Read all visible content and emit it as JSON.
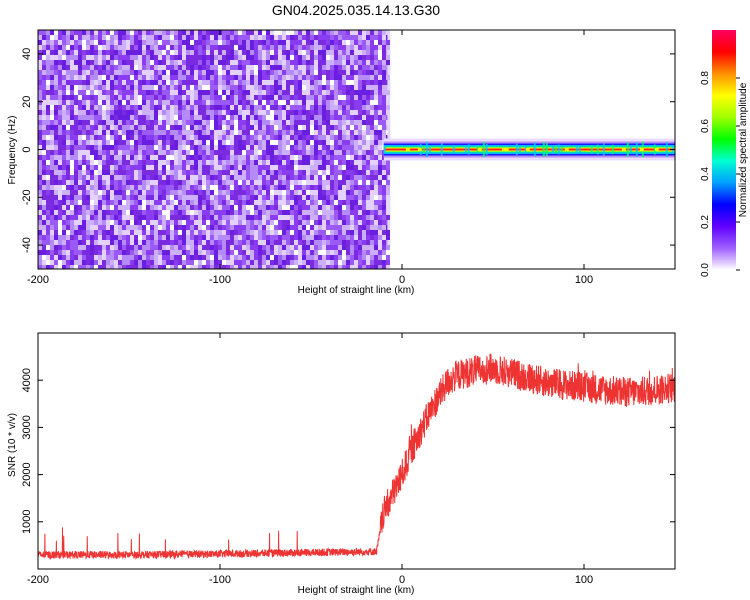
{
  "figure": {
    "title": "GN04.2025.035.14.13.G30"
  },
  "colors": {
    "snr_line": "#ee3333",
    "spectrogram_noise": "#7a2be0",
    "spectrogram_peak": "#ff2020",
    "colorbar": [
      "#ffffff",
      "#a060ff",
      "#6000ff",
      "#0000ff",
      "#00a0ff",
      "#00ffd0",
      "#00ff00",
      "#a0ff00",
      "#ffff00",
      "#ff9000",
      "#ff0000",
      "#ff0060"
    ]
  },
  "chart_data": [
    {
      "type": "heatmap",
      "title": "",
      "xlabel": "Height of straight line (km)",
      "ylabel": "Frequency (Hz)",
      "xlim": [
        -200,
        150
      ],
      "ylim": [
        -50,
        50
      ],
      "xticks": [
        -200,
        -100,
        0,
        100
      ],
      "yticks": [
        -40,
        -20,
        0,
        20,
        40
      ],
      "xtick_labels": [
        "-200",
        "-100",
        "0",
        "100"
      ],
      "ytick_labels": [
        "-40",
        "-20",
        "0",
        "20",
        "40"
      ],
      "noise_region_x": [
        -200,
        -8
      ],
      "signal_start_x": -10,
      "signal_frequency": 0,
      "colorbar": {
        "label": "Normalized spectral amplitude",
        "range": [
          0,
          1
        ],
        "ticks": [
          0.0,
          0.2,
          0.4,
          0.6,
          0.8
        ],
        "tick_labels": [
          "0.0",
          "0.2",
          "0.4",
          "0.6",
          "0.8"
        ]
      }
    },
    {
      "type": "line",
      "title": "",
      "xlabel": "Height of straight line (km)",
      "ylabel": "SNR (10 * v/v)",
      "xlim": [
        -200,
        150
      ],
      "ylim": [
        0,
        5000
      ],
      "xticks": [
        -200,
        -100,
        0,
        100
      ],
      "yticks": [
        1000,
        2000,
        3000,
        4000
      ],
      "xtick_labels": [
        "-200",
        "-100",
        "0",
        "100"
      ],
      "ytick_labels": [
        "1000",
        "2000",
        "3000",
        "4000"
      ],
      "trend": {
        "x": [
          -200,
          -150,
          -100,
          -50,
          -14,
          -12,
          -10,
          -5,
          0,
          5,
          10,
          15,
          20,
          25,
          30,
          40,
          50,
          60,
          70,
          80,
          90,
          100,
          110,
          120,
          130,
          140,
          150
        ],
        "y": [
          300,
          300,
          320,
          350,
          370,
          800,
          1200,
          1600,
          2000,
          2500,
          2900,
          3300,
          3650,
          3950,
          4100,
          4200,
          4250,
          4150,
          4050,
          3950,
          3900,
          3850,
          3800,
          3750,
          3750,
          3800,
          3850
        ]
      }
    }
  ]
}
